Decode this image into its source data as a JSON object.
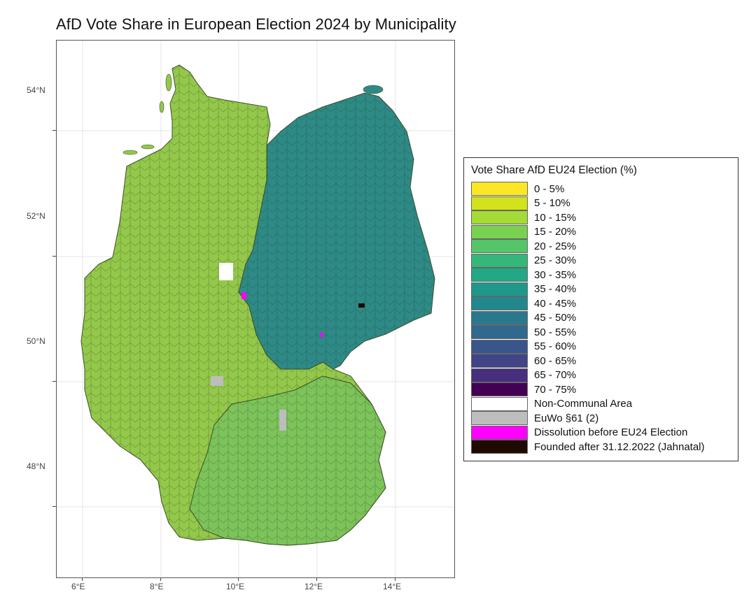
{
  "title": "AfD Vote Share in European Election 2024 by Municipality",
  "map": {
    "region": "Germany",
    "unit": "Municipality",
    "lat_ticks": [
      "54°N",
      "52°N",
      "50°N",
      "48°N"
    ],
    "lon_ticks": [
      "6°E",
      "8°E",
      "10°E",
      "12°E",
      "14°E"
    ],
    "colors": {
      "west_fill": "#93c84a",
      "east_fill": "#2d8a86",
      "bavaria_fill": "#7cc35a",
      "border": "#3f4f2a"
    }
  },
  "legend": {
    "title": "Vote Share AfD EU24 Election (%)",
    "items": [
      {
        "label": "0 - 5%",
        "color": "#fde725"
      },
      {
        "label": "5 - 10%",
        "color": "#d2e21b"
      },
      {
        "label": "10 - 15%",
        "color": "#a5db36"
      },
      {
        "label": "15 - 20%",
        "color": "#7ad151"
      },
      {
        "label": "20 - 25%",
        "color": "#54c568"
      },
      {
        "label": "25 - 30%",
        "color": "#35b779"
      },
      {
        "label": "30 - 35%",
        "color": "#22a884"
      },
      {
        "label": "35 - 40%",
        "color": "#1f988b"
      },
      {
        "label": "40 - 45%",
        "color": "#23888e"
      },
      {
        "label": "45 - 50%",
        "color": "#2a788e"
      },
      {
        "label": "50 - 55%",
        "color": "#31688e"
      },
      {
        "label": "55 - 60%",
        "color": "#39568c"
      },
      {
        "label": "60 - 65%",
        "color": "#414487"
      },
      {
        "label": "65 - 70%",
        "color": "#472f7d"
      },
      {
        "label": "70 - 75%",
        "color": "#440154"
      },
      {
        "label": "Non-Communal Area",
        "color": "#ffffff"
      },
      {
        "label": "EuWo §61 (2)",
        "color": "#bdbdbd"
      },
      {
        "label": "Dissolution before EU24 Election",
        "color": "#ff00ff"
      },
      {
        "label": "Founded after 31.12.2022 (Jahnatal)",
        "color": "#1f0a00"
      }
    ]
  }
}
